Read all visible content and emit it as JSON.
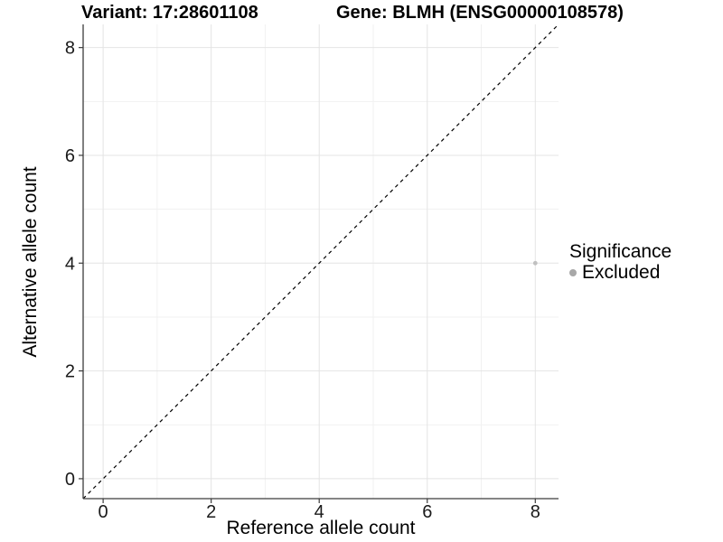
{
  "chart_data": {
    "type": "scatter",
    "title_left": "Variant: 17:28601108",
    "title_right": "Gene: BLMH (ENSG00000108578)",
    "xlabel": "Reference allele count",
    "ylabel": "Alternative allele count",
    "xlim": [
      -0.37,
      8.43
    ],
    "ylim": [
      -0.37,
      8.43
    ],
    "xticks": [
      0,
      2,
      4,
      6,
      8
    ],
    "yticks": [
      0,
      2,
      4,
      6,
      8
    ],
    "xticks_minor": [
      1,
      3,
      5,
      7
    ],
    "yticks_minor": [
      1,
      3,
      5,
      7
    ],
    "grid": "major+minor",
    "reference_line": {
      "type": "identity",
      "slope": 1,
      "intercept": 0,
      "style": "dashed",
      "color": "#000000"
    },
    "series": [
      {
        "name": "Excluded",
        "color": "#c0c0c0",
        "points": [
          {
            "x": 8,
            "y": 4
          }
        ]
      }
    ],
    "legend": {
      "title": "Significance",
      "position": "right",
      "items": [
        {
          "label": "Excluded",
          "color": "#a8a8a8"
        }
      ]
    },
    "style": {
      "grid_major_color": "#e4e4e4",
      "grid_minor_color": "#f1f1f1",
      "axis_color": "#3c3c3c",
      "tick_label_color": "#1a1a1a",
      "background": "#ffffff"
    }
  }
}
